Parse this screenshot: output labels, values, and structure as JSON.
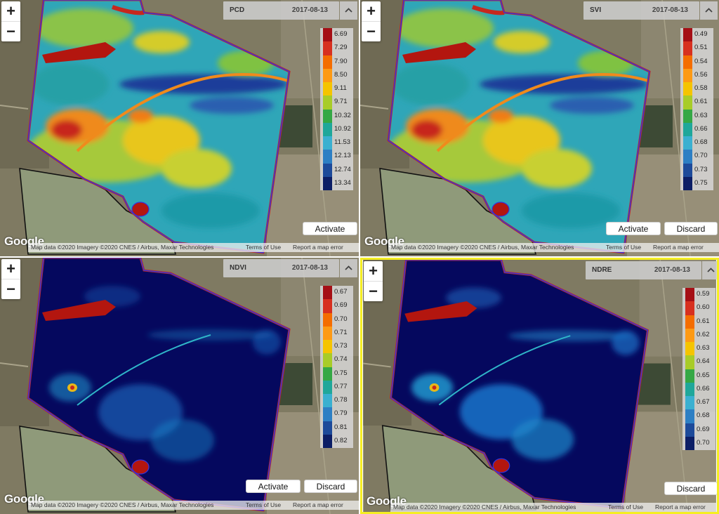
{
  "panels": [
    {
      "layer": "PCD",
      "date": "2017-08-13",
      "theme": "fullcolor",
      "legend": [
        "6.69",
        "7.29",
        "7.90",
        "8.50",
        "9.11",
        "9.71",
        "10.32",
        "10.92",
        "11.53",
        "12.13",
        "12.74",
        "13.34"
      ],
      "activate_label": "Activate",
      "discard_label": "",
      "selected": false
    },
    {
      "layer": "SVI",
      "date": "2017-08-13",
      "theme": "fullcolor",
      "legend": [
        "0.49",
        "0.51",
        "0.54",
        "0.56",
        "0.58",
        "0.61",
        "0.63",
        "0.66",
        "0.68",
        "0.70",
        "0.73",
        "0.75"
      ],
      "activate_label": "Activate",
      "discard_label": "Discard",
      "selected": false
    },
    {
      "layer": "NDVI",
      "date": "2017-08-13",
      "theme": "dark",
      "legend": [
        "0.67",
        "0.69",
        "0.70",
        "0.71",
        "0.73",
        "0.74",
        "0.75",
        "0.77",
        "0.78",
        "0.79",
        "0.81",
        "0.82"
      ],
      "activate_label": "Activate",
      "discard_label": "Discard",
      "selected": false
    },
    {
      "layer": "NDRE",
      "date": "2017-08-13",
      "theme": "dark",
      "legend": [
        "0.59",
        "0.60",
        "0.61",
        "0.62",
        "0.63",
        "0.64",
        "0.65",
        "0.66",
        "0.67",
        "0.68",
        "0.69",
        "0.70"
      ],
      "activate_label": "",
      "discard_label": "Discard",
      "selected": true
    }
  ],
  "common": {
    "zoom_in": "+",
    "zoom_out": "−",
    "google_logo": "Google",
    "attribution": "Map data ©2020 Imagery ©2020 CNES / Airbus, Maxar Technologies",
    "terms": "Terms of Use",
    "report": "Report a map error",
    "collapse_icon": "chevron-up-icon"
  },
  "legend_colors": [
    "#a50f15",
    "#d7301f",
    "#f46d00",
    "#fd9a14",
    "#f5c400",
    "#a8cc28",
    "#35a845",
    "#1fa79a",
    "#3ab0d0",
    "#2d7fc4",
    "#1d4a9a",
    "#0c1e66"
  ],
  "colors": {
    "selected_border": "#f5ee22",
    "field_outline": "#3333dd",
    "dark_field": "#05085e"
  }
}
